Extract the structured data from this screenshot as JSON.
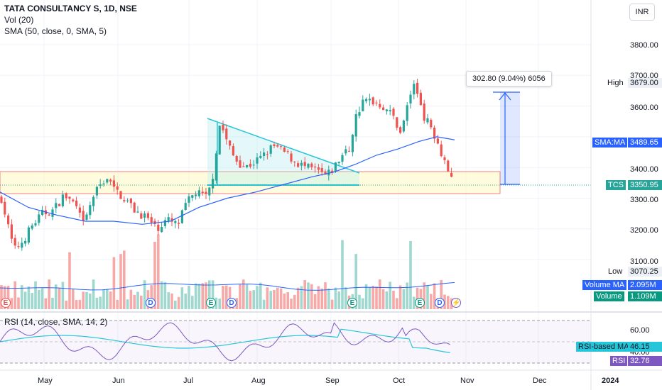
{
  "header": {
    "title": "TATA CONSULTANCY S, 1D, NSE",
    "vol_indicator": "Vol (20)",
    "sma_indicator": "SMA (50, close, 0, SMA, 5)",
    "currency_button": "INR"
  },
  "price_axis": {
    "ticks": [
      "3800.00",
      "3700.00",
      "3600.00",
      "3400.00",
      "3300.00",
      "3200.00",
      "3100.00"
    ],
    "high_label": "High",
    "high_value": "3679.00",
    "sma_label": "SMA:MA",
    "sma_value": "3489.65",
    "symbol_label": "TCS",
    "symbol_value": "3350.95",
    "low_label": "Low",
    "low_value": "3070.25",
    "volume_ma_label": "Volume MA",
    "volume_ma_value": "2.095M",
    "volume_label": "Volume",
    "volume_value": "1.109M"
  },
  "measure": {
    "label": "302.80 (9.04%) 6056"
  },
  "rsi": {
    "title": "RSI (14, close, SMA, 14, 2)",
    "ticks": [
      "60.00",
      "40.00"
    ],
    "ma_label": "RSI-based MA",
    "ma_value": "46.15",
    "rsi_label": "RSI",
    "rsi_value": "32.76"
  },
  "time_axis": {
    "months": [
      "May",
      "Jun",
      "Jul",
      "Aug",
      "Sep",
      "Oct",
      "Nov",
      "Dec"
    ],
    "year": "2024"
  },
  "events": [
    "E",
    "D",
    "E",
    "D",
    "E",
    "E",
    "D"
  ],
  "colors": {
    "up": "#26a69a",
    "down": "#ef5350",
    "sma": "#2962ff",
    "rsi": "#7e57c2",
    "rsi_ma": "#26c6da",
    "accent": "#2962ff",
    "volume": "#089981"
  },
  "chart_data": {
    "type": "candlestick",
    "title": "TATA CONSULTANCY S, 1D, NSE",
    "currency": "INR",
    "last_close": 3350.95,
    "high": 3679.0,
    "low": 3070.25,
    "sma_last": 3489.65,
    "volume_last": "1.109M",
    "volume_ma_last": "2.095M",
    "rsi_last": 32.76,
    "rsi_ma_last": 46.15,
    "price_range": [
      3020,
      3860
    ],
    "measure_change": "302.80 (9.04%) 6056"
  }
}
